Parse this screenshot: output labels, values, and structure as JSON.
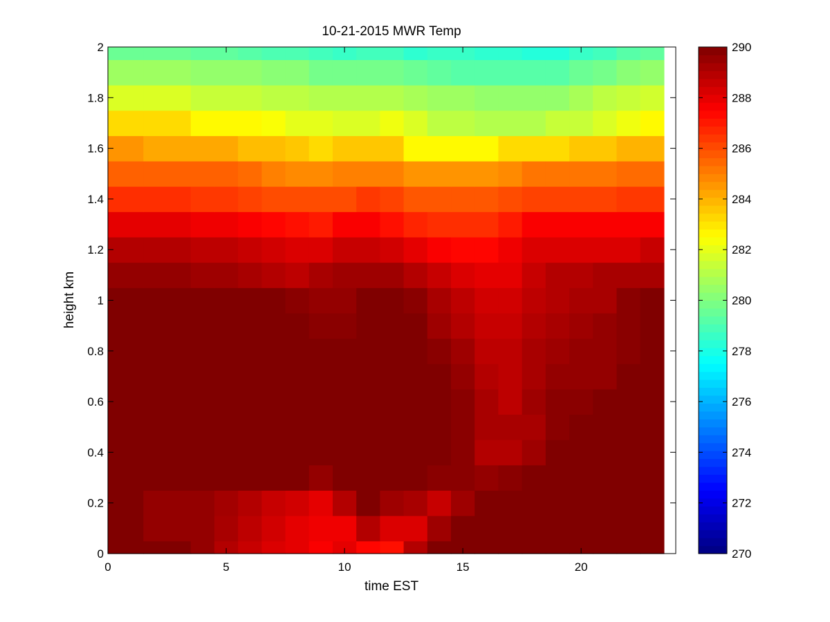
{
  "chart_data": {
    "type": "heatmap",
    "title": "10-21-2015 MWR Temp",
    "xlabel": "time EST",
    "ylabel": "height km",
    "xlim": [
      0,
      24
    ],
    "ylim": [
      0,
      2
    ],
    "xticks": [
      0,
      5,
      10,
      15,
      20
    ],
    "xtick_labels": [
      "0",
      "5",
      "10",
      "15",
      "20"
    ],
    "yticks": [
      0,
      0.2,
      0.4,
      0.6,
      0.8,
      1,
      1.2,
      1.4,
      1.6,
      1.8,
      2
    ],
    "ytick_labels": [
      "0",
      "0.2",
      "0.4",
      "0.6",
      "0.8",
      "1",
      "1.2",
      "1.4",
      "1.6",
      "1.8",
      "2"
    ],
    "x_edges": [
      0,
      1.5,
      3.5,
      4.5,
      5.5,
      6.5,
      7.5,
      8.5,
      9.5,
      10.5,
      11.5,
      12.5,
      13.5,
      14.5,
      15.5,
      16.5,
      17.5,
      18.5,
      19.5,
      20.5,
      21.5,
      22.5,
      23.5
    ],
    "y_edges": [
      0,
      0.05,
      0.15,
      0.25,
      0.35,
      0.45,
      0.55,
      0.65,
      0.75,
      0.85,
      0.95,
      1.05,
      1.15,
      1.25,
      1.35,
      1.45,
      1.55,
      1.65,
      1.75,
      1.85,
      1.95,
      2.0
    ],
    "z": [
      [
        290.0,
        290.0,
        289.6,
        289.0,
        288.6,
        288.2,
        288.0,
        287.6,
        288.0,
        287.4,
        287.2,
        289.0,
        290.0,
        290.0,
        290.0,
        290.0,
        290.0,
        290.0,
        290.0,
        290.0,
        290.0,
        290.0
      ],
      [
        290.0,
        289.6,
        289.6,
        289.2,
        288.8,
        288.4,
        288.0,
        287.8,
        287.8,
        289.0,
        288.2,
        288.2,
        289.4,
        290.0,
        290.0,
        290.0,
        290.0,
        290.0,
        290.0,
        290.0,
        290.0,
        290.0
      ],
      [
        290.0,
        289.6,
        289.6,
        289.3,
        289.0,
        288.6,
        288.4,
        288.0,
        289.0,
        290.0,
        289.4,
        289.2,
        288.6,
        289.4,
        290.0,
        290.0,
        290.0,
        290.0,
        290.0,
        290.0,
        290.0,
        290.0
      ],
      [
        290.0,
        290.0,
        290.0,
        290.0,
        290.0,
        290.0,
        290.0,
        289.6,
        290.0,
        290.0,
        290.0,
        290.0,
        289.8,
        289.8,
        289.6,
        289.8,
        290.0,
        290.0,
        290.0,
        290.0,
        290.0,
        290.0
      ],
      [
        290.0,
        290.0,
        290.0,
        290.0,
        290.0,
        290.0,
        290.0,
        290.0,
        290.0,
        290.0,
        290.0,
        290.0,
        290.0,
        289.8,
        289.0,
        289.0,
        289.4,
        290.0,
        290.0,
        290.0,
        290.0,
        290.0
      ],
      [
        290.0,
        290.0,
        290.0,
        290.0,
        290.0,
        290.0,
        290.0,
        290.0,
        290.0,
        290.0,
        290.0,
        290.0,
        290.0,
        289.8,
        289.2,
        289.2,
        289.2,
        289.8,
        290.0,
        290.0,
        290.0,
        290.0
      ],
      [
        290.0,
        290.0,
        290.0,
        290.0,
        290.0,
        290.0,
        290.0,
        290.0,
        290.0,
        290.0,
        290.0,
        290.0,
        290.0,
        289.8,
        289.2,
        288.8,
        289.4,
        289.8,
        289.8,
        290.0,
        290.0,
        290.0
      ],
      [
        290.0,
        290.0,
        290.0,
        290.0,
        290.0,
        290.0,
        290.0,
        290.0,
        290.0,
        290.0,
        290.0,
        290.0,
        290.0,
        289.6,
        289.0,
        288.8,
        289.2,
        289.6,
        289.6,
        289.6,
        290.0,
        290.0
      ],
      [
        290.0,
        290.0,
        290.0,
        290.0,
        290.0,
        290.0,
        290.0,
        290.0,
        290.0,
        290.0,
        290.0,
        290.0,
        289.8,
        289.4,
        288.8,
        288.8,
        289.2,
        289.4,
        289.6,
        289.6,
        289.8,
        290.0
      ],
      [
        290.0,
        290.0,
        290.0,
        290.0,
        290.0,
        290.0,
        290.0,
        289.8,
        289.8,
        290.0,
        290.0,
        290.0,
        289.4,
        289.0,
        288.6,
        288.6,
        289.0,
        289.2,
        289.4,
        289.6,
        289.8,
        290.0
      ],
      [
        290.0,
        290.0,
        290.0,
        290.0,
        290.0,
        290.0,
        289.8,
        289.6,
        289.6,
        290.0,
        290.0,
        289.8,
        289.2,
        288.8,
        288.4,
        288.4,
        288.8,
        289.0,
        289.2,
        289.2,
        289.8,
        290.0
      ],
      [
        289.6,
        289.6,
        289.4,
        289.4,
        289.2,
        289.0,
        288.8,
        289.2,
        289.4,
        289.4,
        289.4,
        289.0,
        288.6,
        288.2,
        288.0,
        288.0,
        288.6,
        289.0,
        289.0,
        289.2,
        289.2,
        289.2
      ],
      [
        289.0,
        289.0,
        288.8,
        288.8,
        288.6,
        288.4,
        288.2,
        288.2,
        288.6,
        288.6,
        288.4,
        288.0,
        287.6,
        287.4,
        287.4,
        287.8,
        288.2,
        288.2,
        288.2,
        288.2,
        288.2,
        288.6
      ],
      [
        288.0,
        288.0,
        287.8,
        287.8,
        287.6,
        287.4,
        287.2,
        287.0,
        287.6,
        287.6,
        287.2,
        286.8,
        286.6,
        286.6,
        286.6,
        287.0,
        287.6,
        287.6,
        287.6,
        287.6,
        287.6,
        287.6
      ],
      [
        286.6,
        286.6,
        286.4,
        286.4,
        286.2,
        286.0,
        286.0,
        286.0,
        286.0,
        286.4,
        286.2,
        285.8,
        285.8,
        285.8,
        285.8,
        286.0,
        286.2,
        286.2,
        286.2,
        286.2,
        286.4,
        286.4
      ],
      [
        285.6,
        285.6,
        285.6,
        285.6,
        285.4,
        285.0,
        284.8,
        284.8,
        285.0,
        285.0,
        285.0,
        284.6,
        284.6,
        284.6,
        284.6,
        284.8,
        285.2,
        285.2,
        285.2,
        285.2,
        285.4,
        285.4
      ],
      [
        284.6,
        284.2,
        284.2,
        284.2,
        283.8,
        283.8,
        283.6,
        283.2,
        283.6,
        283.6,
        283.6,
        282.6,
        282.6,
        282.6,
        282.6,
        283.2,
        283.2,
        283.2,
        283.6,
        283.6,
        284.0,
        284.0
      ],
      [
        283.2,
        283.2,
        282.6,
        282.6,
        282.6,
        282.4,
        282.0,
        282.0,
        281.8,
        281.8,
        282.2,
        281.8,
        281.2,
        281.2,
        281.0,
        281.0,
        281.0,
        281.4,
        281.4,
        281.8,
        282.2,
        282.6
      ],
      [
        281.8,
        281.8,
        281.4,
        281.4,
        281.4,
        281.2,
        281.2,
        281.0,
        281.0,
        281.0,
        281.0,
        280.8,
        280.6,
        280.6,
        280.4,
        280.4,
        280.4,
        280.4,
        280.8,
        281.2,
        281.4,
        281.6
      ],
      [
        280.6,
        280.6,
        280.4,
        280.4,
        280.4,
        280.2,
        280.2,
        279.8,
        279.8,
        279.8,
        279.8,
        279.6,
        279.4,
        279.2,
        279.2,
        279.2,
        279.2,
        279.2,
        279.6,
        279.8,
        280.2,
        280.4
      ],
      [
        279.6,
        279.6,
        279.4,
        279.4,
        279.2,
        279.0,
        279.0,
        278.8,
        278.6,
        278.8,
        278.8,
        278.4,
        278.6,
        278.6,
        278.4,
        278.4,
        278.2,
        278.2,
        278.6,
        278.8,
        279.2,
        279.4
      ]
    ],
    "colorbar": {
      "min": 270,
      "max": 290,
      "ticks": [
        270,
        272,
        274,
        276,
        278,
        280,
        282,
        284,
        286,
        288,
        290
      ],
      "tick_labels": [
        "270",
        "272",
        "274",
        "276",
        "278",
        "280",
        "282",
        "284",
        "286",
        "288",
        "290"
      ],
      "colormap": "jet"
    },
    "grid": false,
    "legend": "none"
  }
}
